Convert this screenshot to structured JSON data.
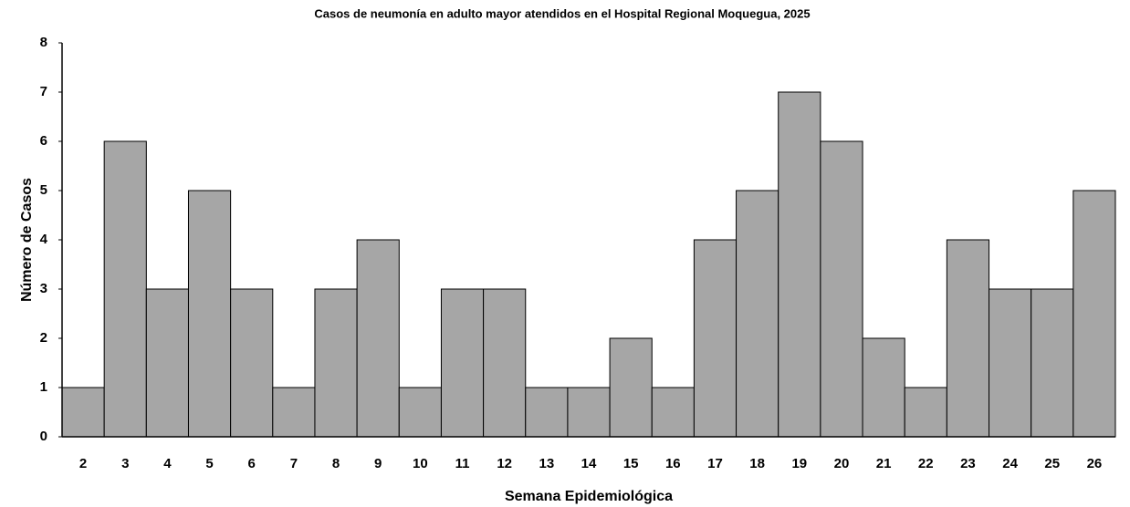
{
  "chart_data": {
    "type": "bar",
    "title": "Casos de neumonía  en adulto mayor atendidos en el Hospital Regional Moquegua, 2025",
    "x_label": "Semana Epidemiológica",
    "y_label": "Número de Casos",
    "categories": [
      "2",
      "3",
      "4",
      "5",
      "6",
      "7",
      "8",
      "9",
      "10",
      "11",
      "12",
      "13",
      "14",
      "15",
      "16",
      "17",
      "18",
      "19",
      "20",
      "21",
      "22",
      "23",
      "24",
      "25",
      "26"
    ],
    "values": [
      1,
      6,
      3,
      5,
      3,
      1,
      3,
      4,
      1,
      3,
      3,
      1,
      1,
      2,
      1,
      4,
      5,
      7,
      6,
      2,
      1,
      4,
      3,
      3,
      5
    ],
    "color": "#a6a6a6",
    "ylim": [
      0,
      8
    ],
    "yticks": [
      0,
      1,
      2,
      3,
      4,
      5,
      6,
      7,
      8
    ],
    "grid": false
  }
}
